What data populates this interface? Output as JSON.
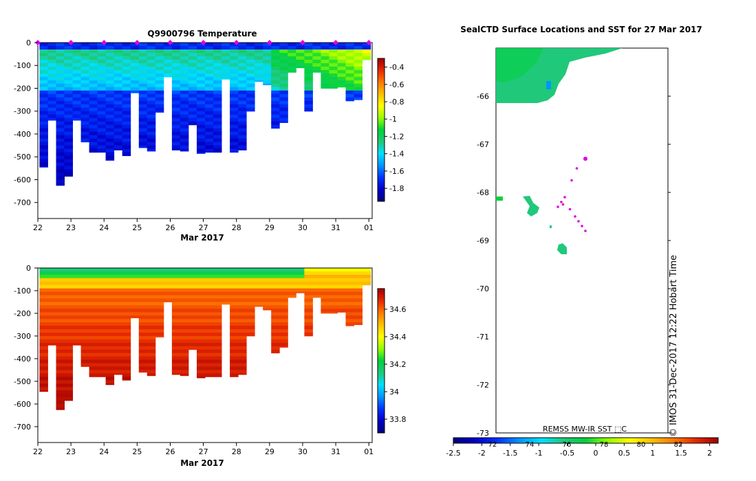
{
  "colors": {
    "ramp": [
      "#00007f",
      "#0000c8",
      "#0032ff",
      "#0096ff",
      "#00e0ff",
      "#20c87a",
      "#00d23c",
      "#96ff00",
      "#ffff00",
      "#ffc000",
      "#ff7800",
      "#e62800",
      "#a00000"
    ],
    "magenta": "#dd00dd",
    "frame": "#000000"
  },
  "chart_data": [
    {
      "type": "heatmap",
      "title": "Q9900796  Temperature",
      "xlabel": "Mar 2017",
      "ylabel": "",
      "x_ticks": [
        "22",
        "23",
        "24",
        "25",
        "26",
        "27",
        "28",
        "29",
        "30",
        "31",
        "01"
      ],
      "x_tick_values": [
        22,
        23,
        24,
        25,
        26,
        27,
        28,
        29,
        30,
        31,
        32
      ],
      "xlim": [
        22,
        32.1
      ],
      "y_ticks": [
        "0",
        "-100",
        "-200",
        "-300",
        "-400",
        "-500",
        "-600",
        "-700"
      ],
      "y_tick_values": [
        0,
        -100,
        -200,
        -300,
        -400,
        -500,
        -600,
        -700
      ],
      "ylim": [
        -770,
        0
      ],
      "colorbar": {
        "ticks": [
          "-0.4",
          "-0.6",
          "-0.8",
          "-1",
          "-1.2",
          "-1.4",
          "-1.6",
          "-1.8"
        ],
        "tick_values": [
          -0.4,
          -0.6,
          -0.8,
          -1.0,
          -1.2,
          -1.4,
          -1.6,
          -1.8
        ],
        "range": [
          -1.95,
          -0.3
        ]
      },
      "profile_days": [
        22.05,
        22.3,
        22.55,
        22.8,
        23.05,
        23.3,
        23.55,
        23.8,
        24.05,
        24.3,
        24.55,
        24.8,
        25.05,
        25.3,
        25.55,
        25.8,
        26.05,
        26.3,
        26.55,
        26.8,
        27.05,
        27.3,
        27.55,
        27.8,
        28.05,
        28.3,
        28.55,
        28.8,
        29.05,
        29.3,
        29.55,
        29.8,
        30.05,
        30.3,
        30.55,
        30.8,
        31.05,
        31.3,
        31.55,
        31.8
      ],
      "profile_max_depth": [
        545,
        340,
        625,
        585,
        340,
        435,
        480,
        480,
        515,
        470,
        495,
        220,
        460,
        475,
        305,
        150,
        470,
        475,
        360,
        485,
        480,
        480,
        160,
        480,
        470,
        300,
        170,
        185,
        375,
        350,
        130,
        110,
        300,
        130,
        200,
        200,
        195,
        255,
        250,
        75
      ],
      "surface_markers_days": [
        22,
        23,
        24,
        25,
        26,
        27,
        28,
        29,
        30,
        31,
        32
      ]
    },
    {
      "type": "heatmap",
      "title": "",
      "xlabel": "Mar 2017",
      "ylabel": "",
      "x_ticks": [
        "22",
        "23",
        "24",
        "25",
        "26",
        "27",
        "28",
        "29",
        "30",
        "31",
        "01"
      ],
      "x_tick_values": [
        22,
        23,
        24,
        25,
        26,
        27,
        28,
        29,
        30,
        31,
        32
      ],
      "xlim": [
        22,
        32.1
      ],
      "y_ticks": [
        "0",
        "-100",
        "-200",
        "-300",
        "-400",
        "-500",
        "-600",
        "-700"
      ],
      "y_tick_values": [
        0,
        -100,
        -200,
        -300,
        -400,
        -500,
        -600,
        -700
      ],
      "ylim": [
        -770,
        0
      ],
      "colorbar": {
        "ticks": [
          "34.6",
          "34.4",
          "34.2",
          "34",
          "33.8"
        ],
        "tick_values": [
          34.6,
          34.4,
          34.2,
          34.0,
          33.8
        ],
        "range": [
          33.7,
          34.75
        ]
      }
    },
    {
      "type": "scatter",
      "title": "SealCTD Surface Locations and SST for 27 Mar 2017",
      "xlabel": "",
      "ylabel": "",
      "y_ticks": [
        "-66",
        "-67",
        "-68",
        "-69",
        "-70",
        "-71",
        "-72",
        "-73"
      ],
      "y_tick_values": [
        -66,
        -67,
        -68,
        -69,
        -70,
        -71,
        -72,
        -73
      ],
      "ylim": [
        -73.0,
        -65.0
      ],
      "locations": [
        {
          "x": 0.52,
          "y": -67.3
        },
        {
          "x": 0.47,
          "y": -67.5
        },
        {
          "x": 0.44,
          "y": -67.75
        },
        {
          "x": 0.4,
          "y": -68.1
        },
        {
          "x": 0.38,
          "y": -68.2
        },
        {
          "x": 0.36,
          "y": -68.3
        },
        {
          "x": 0.43,
          "y": -68.35
        },
        {
          "x": 0.39,
          "y": -68.25
        },
        {
          "x": 0.46,
          "y": -68.5
        },
        {
          "x": 0.48,
          "y": -68.6
        },
        {
          "x": 0.5,
          "y": -68.7
        },
        {
          "x": 0.52,
          "y": -68.8
        }
      ],
      "sst_colorbar": {
        "label": "REMSS MW-IR SST ⬚C",
        "ticks": [
          "-2.5",
          "-2",
          "-1.5",
          "-1",
          "-0.5",
          "0",
          "0.5",
          "1",
          "1.5",
          "2"
        ],
        "tick_values": [
          -2.5,
          -2,
          -1.5,
          -1,
          -0.5,
          0,
          0.5,
          1,
          1.5,
          2
        ],
        "range": [
          -2.5,
          2.15
        ],
        "overlay_ticks": [
          "72",
          "74",
          "76",
          "78",
          "80",
          "82"
        ]
      },
      "credit": "©  IMOS 31-Dec-2017 12:22 Hobart Time"
    }
  ]
}
